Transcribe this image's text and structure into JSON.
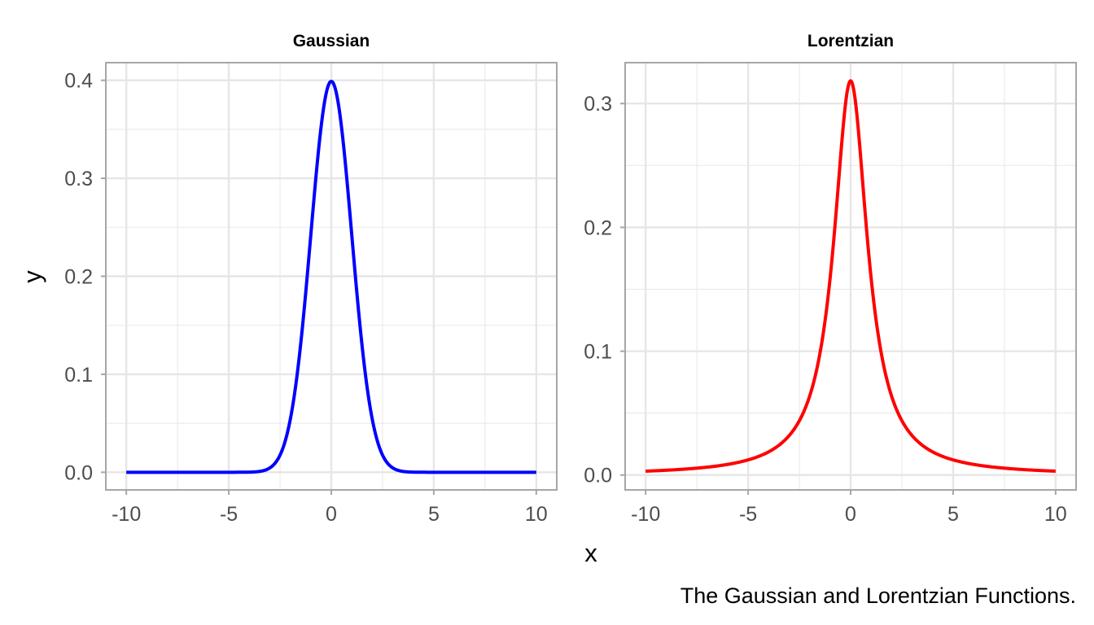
{
  "chart_data": {
    "xlabel": "x",
    "ylabel": "y",
    "caption": "The Gaussian and Lorentzian Functions.",
    "panels": [
      {
        "type": "line",
        "title": "Gaussian",
        "function": "gaussian",
        "color": "#0000ff",
        "xlim": [
          -11,
          11
        ],
        "ylim": [
          -0.018,
          0.418
        ],
        "x_ticks": [
          -10,
          -5,
          0,
          5,
          10
        ],
        "x_tick_labels": [
          "-10",
          "-5",
          "0",
          "5",
          "10"
        ],
        "y_ticks": [
          0.0,
          0.1,
          0.2,
          0.3,
          0.4
        ],
        "y_tick_labels": [
          "0.0",
          "0.1",
          "0.2",
          "0.3",
          "0.4"
        ],
        "grid": true,
        "series": [
          {
            "x": [
              -10,
              -9,
              -8,
              -7,
              -6,
              -5,
              -4,
              -3.5,
              -3,
              -2.5,
              -2,
              -1.5,
              -1,
              -0.5,
              0,
              0.5,
              1,
              1.5,
              2,
              2.5,
              3,
              3.5,
              4,
              5,
              6,
              7,
              8,
              9,
              10
            ],
            "y": [
              0.0,
              0.0,
              0.0,
              0.0,
              0.0,
              0.0,
              0.0001,
              0.0009,
              0.0044,
              0.0175,
              0.054,
              0.1295,
              0.242,
              0.3521,
              0.3989,
              0.3521,
              0.242,
              0.1295,
              0.054,
              0.0175,
              0.0044,
              0.0009,
              0.0001,
              0.0,
              0.0,
              0.0,
              0.0,
              0.0,
              0.0
            ]
          }
        ]
      },
      {
        "type": "line",
        "title": "Lorentzian",
        "function": "lorentzian",
        "color": "#ff0000",
        "xlim": [
          -11,
          11
        ],
        "ylim": [
          -0.012,
          0.333
        ],
        "x_ticks": [
          -10,
          -5,
          0,
          5,
          10
        ],
        "x_tick_labels": [
          "-10",
          "-5",
          "0",
          "5",
          "10"
        ],
        "y_ticks": [
          0.0,
          0.1,
          0.2,
          0.3
        ],
        "y_tick_labels": [
          "0.0",
          "0.1",
          "0.2",
          "0.3"
        ],
        "grid": true,
        "series": [
          {
            "x": [
              -10,
              -9,
              -8,
              -7,
              -6,
              -5,
              -4,
              -3,
              -2.5,
              -2,
              -1.5,
              -1,
              -0.5,
              0,
              0.5,
              1,
              1.5,
              2,
              2.5,
              3,
              4,
              5,
              6,
              7,
              8,
              9,
              10
            ],
            "y": [
              0.0032,
              0.0039,
              0.0049,
              0.0064,
              0.0086,
              0.0122,
              0.0187,
              0.0318,
              0.0439,
              0.0637,
              0.0979,
              0.1592,
              0.2546,
              0.3183,
              0.2546,
              0.1592,
              0.0979,
              0.0637,
              0.0439,
              0.0318,
              0.0187,
              0.0122,
              0.0086,
              0.0064,
              0.0049,
              0.0039,
              0.0032
            ]
          }
        ]
      }
    ]
  }
}
